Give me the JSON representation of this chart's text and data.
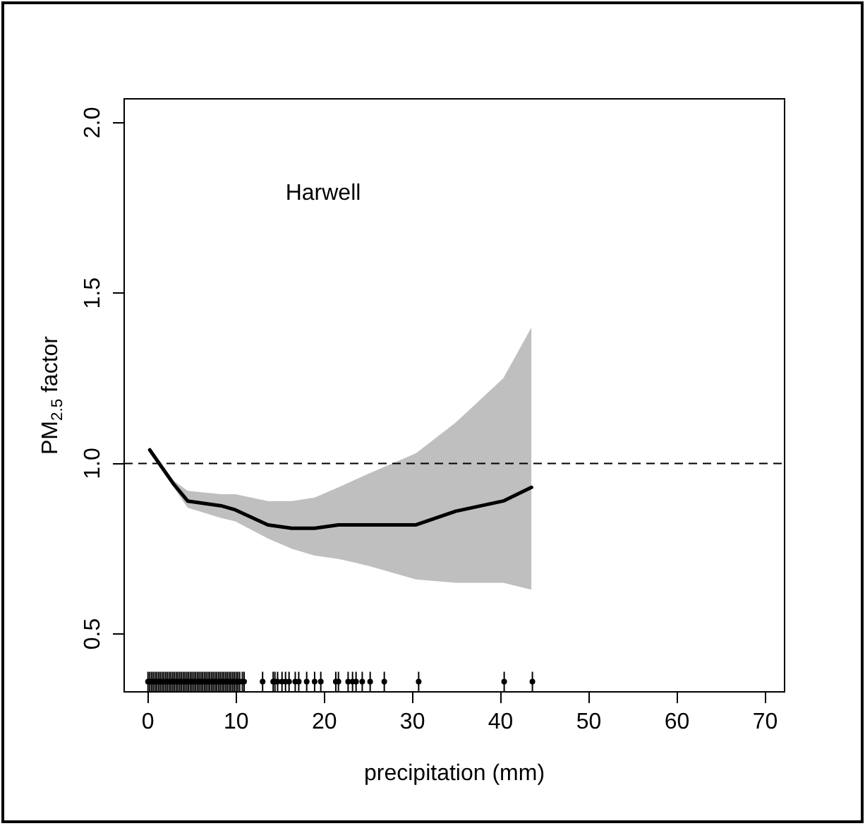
{
  "chart_data": {
    "type": "line",
    "xlabel": "precipitation (mm)",
    "ylabel": "PM$_{2.5}$ factor",
    "annotations": [
      "Harwell"
    ],
    "xlim": [
      -2.7,
      72.2
    ],
    "ylim": [
      0.33,
      2.07
    ],
    "xticks": [
      0,
      10,
      20,
      30,
      40,
      50,
      60,
      70
    ],
    "yticks": [
      0.5,
      {
        "value": 1,
        "label": "1.0"
      },
      1.5,
      {
        "value": 2,
        "label": "2.0"
      }
    ],
    "grid": false,
    "legend": false,
    "ref_lines": [
      {
        "axis": "y",
        "value": 1.0,
        "color": "#000000",
        "line_style": "dashed"
      }
    ],
    "series": [
      {
        "color": "#000000",
        "line_style": "solid",
        "marker": "none",
        "x": [
          0.2,
          2.9,
          4.5,
          8.3,
          9.9,
          13.6,
          16.3,
          18.9,
          21.6,
          25,
          30.4,
          34.9,
          40.3,
          43.5
        ],
        "values": [
          1.04,
          0.94,
          0.89,
          0.876,
          0.864,
          0.82,
          0.81,
          0.81,
          0.82,
          0.82,
          0.82,
          0.86,
          0.89,
          0.93
        ],
        "upper": [
          1.04,
          0.95,
          0.92,
          0.91,
          0.91,
          0.89,
          0.89,
          0.9,
          0.93,
          0.97,
          1.03,
          1.12,
          1.25,
          1.4
        ],
        "lower": [
          1.04,
          0.93,
          0.87,
          0.84,
          0.83,
          0.78,
          0.75,
          0.73,
          0.72,
          0.7,
          0.66,
          0.65,
          0.65,
          0.63
        ]
      },
      {
        "type": "scatter",
        "color": "#000000",
        "x": [
          0,
          0.2,
          0.4,
          0.6,
          0.8,
          1,
          1.2,
          1.4,
          1.6,
          1.8,
          2,
          2.2,
          2.4,
          2.6,
          2.8,
          3,
          3.2,
          3.4,
          3.6,
          3.8,
          4,
          4.2,
          4.4,
          4.6,
          4.8,
          5,
          5.2,
          5.4,
          5.6,
          5.8,
          6,
          6.2,
          6.4,
          6.6,
          6.8,
          7,
          7.2,
          7.4,
          7.6,
          7.8,
          8,
          8.2,
          8.4,
          8.6,
          8.8,
          9,
          9.2,
          9.4,
          9.6,
          9.8,
          10,
          10.2,
          10.4,
          10.7,
          10.9,
          13,
          14.2,
          14.4,
          14.7,
          15.2,
          15.6,
          16,
          16.7,
          17.1,
          18,
          18.9,
          19.6,
          21.3,
          21.6,
          22.7,
          23.2,
          23.6,
          24.3,
          25.2,
          26.8,
          30.7,
          40.4,
          43.6
        ],
        "values": [
          0.36,
          0.36,
          0.36,
          0.36,
          0.36,
          0.36,
          0.36,
          0.36,
          0.36,
          0.36,
          0.36,
          0.36,
          0.36,
          0.36,
          0.36,
          0.36,
          0.36,
          0.36,
          0.36,
          0.36,
          0.36,
          0.36,
          0.36,
          0.36,
          0.36,
          0.36,
          0.36,
          0.36,
          0.36,
          0.36,
          0.36,
          0.36,
          0.36,
          0.36,
          0.36,
          0.36,
          0.36,
          0.36,
          0.36,
          0.36,
          0.36,
          0.36,
          0.36,
          0.36,
          0.36,
          0.36,
          0.36,
          0.36,
          0.36,
          0.36,
          0.36,
          0.36,
          0.36,
          0.36,
          0.36,
          0.36,
          0.36,
          0.36,
          0.36,
          0.36,
          0.36,
          0.36,
          0.36,
          0.36,
          0.36,
          0.36,
          0.36,
          0.36,
          0.36,
          0.36,
          0.36,
          0.36,
          0.36,
          0.36,
          0.36,
          0.36,
          0.36,
          0.36
        ]
      }
    ]
  }
}
